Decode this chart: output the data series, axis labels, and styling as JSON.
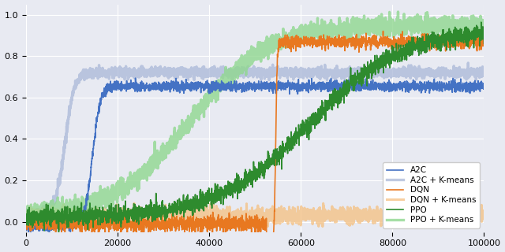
{
  "title": "",
  "xlabel": "",
  "ylabel": "",
  "xlim": [
    0,
    100000
  ],
  "ylim": [
    -0.05,
    1.05
  ],
  "yticks": [
    0.0,
    0.2,
    0.4,
    0.6,
    0.8,
    1.0
  ],
  "xticks": [
    0,
    20000,
    40000,
    60000,
    80000,
    100000
  ],
  "background_color": "#e8eaf2",
  "grid_color": "#ffffff",
  "colors": {
    "A2C": "#4472c4",
    "A2C_kmeans": "#aab8d8",
    "DQN": "#e87820",
    "DQN_kmeans": "#f5c080",
    "PPO": "#2e8b2e",
    "PPO_kmeans": "#90d890"
  },
  "line_width": 1.2,
  "seed": 42,
  "n_points": 3000
}
